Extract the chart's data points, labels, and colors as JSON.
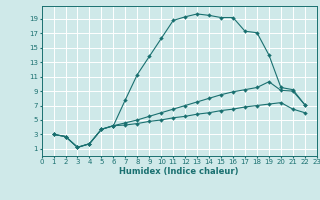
{
  "xlabel": "Humidex (Indice chaleur)",
  "bg_color": "#cfe9e9",
  "grid_color": "#ffffff",
  "line_color": "#1a7070",
  "x_ticks": [
    0,
    1,
    2,
    3,
    4,
    5,
    6,
    7,
    8,
    9,
    10,
    11,
    12,
    13,
    14,
    15,
    16,
    17,
    18,
    19,
    20,
    21,
    22,
    23
  ],
  "y_ticks": [
    1,
    3,
    5,
    7,
    9,
    11,
    13,
    15,
    17,
    19
  ],
  "ylim": [
    0.0,
    20.8
  ],
  "xlim": [
    0,
    23
  ],
  "line1_x": [
    1,
    2,
    3,
    4,
    5,
    6,
    7,
    8,
    9,
    10,
    11,
    12,
    13,
    14,
    15,
    16,
    17,
    18,
    19,
    20,
    21,
    22
  ],
  "line1_y": [
    3.0,
    2.7,
    1.2,
    1.7,
    3.7,
    4.2,
    7.8,
    11.3,
    13.8,
    16.3,
    18.8,
    19.3,
    19.7,
    19.5,
    19.2,
    19.2,
    17.3,
    17.1,
    14.0,
    9.5,
    9.2,
    7.1
  ],
  "line2_x": [
    1,
    2,
    3,
    4,
    5,
    6,
    7,
    8,
    9,
    10,
    11,
    12,
    13,
    14,
    15,
    16,
    17,
    18,
    19,
    20,
    21,
    22
  ],
  "line2_y": [
    3.0,
    2.7,
    1.2,
    1.7,
    3.7,
    4.2,
    4.6,
    5.0,
    5.5,
    6.0,
    6.5,
    7.0,
    7.5,
    8.0,
    8.5,
    8.9,
    9.2,
    9.5,
    10.3,
    9.1,
    9.0,
    7.1
  ],
  "line3_x": [
    1,
    2,
    3,
    4,
    5,
    6,
    7,
    8,
    9,
    10,
    11,
    12,
    13,
    14,
    15,
    16,
    17,
    18,
    19,
    20,
    21,
    22
  ],
  "line3_y": [
    3.0,
    2.7,
    1.2,
    1.7,
    3.7,
    4.2,
    4.3,
    4.5,
    4.8,
    5.0,
    5.3,
    5.5,
    5.8,
    6.0,
    6.3,
    6.5,
    6.8,
    7.0,
    7.2,
    7.4,
    6.5,
    6.0
  ]
}
